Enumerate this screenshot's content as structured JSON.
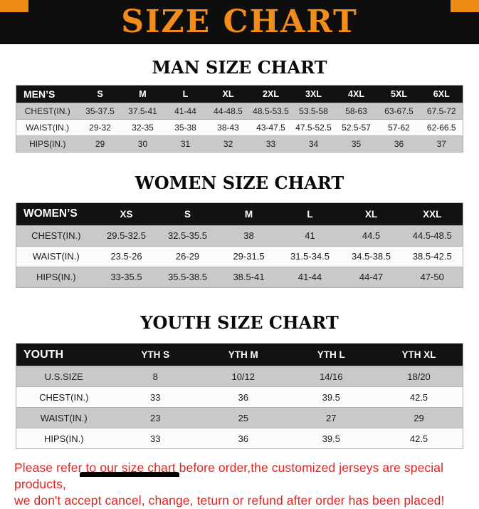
{
  "banner": {
    "title": "SIZE CHART"
  },
  "colors": {
    "banner_bg": "#0E0E0E",
    "banner_text": "#F28D1C",
    "corner_accent": "#ED8A12",
    "table_header_bg": "#121212",
    "row_gray": "#C9C9C9",
    "footer_red": "#E8201E"
  },
  "men": {
    "heading": "MAN SIZE CHART",
    "header": [
      "MEN’S",
      "S",
      "M",
      "L",
      "XL",
      "2XL",
      "3XL",
      "4XL",
      "5XL",
      "6XL"
    ],
    "rows": [
      [
        "CHEST(IN.)",
        "35-37.5",
        "37.5-41",
        "41-44",
        "44-48.5",
        "48.5-53.5",
        "53.5-58",
        "58-63",
        "63-67.5",
        "67.5-72"
      ],
      [
        "WAIST(IN.)",
        "29-32",
        "32-35",
        "35-38",
        "38-43",
        "43-47.5",
        "47.5-52.5",
        "52.5-57",
        "57-62",
        "62-66.5"
      ],
      [
        "HIPS(IN.)",
        "29",
        "30",
        "31",
        "32",
        "33",
        "34",
        "35",
        "36",
        "37"
      ]
    ]
  },
  "women": {
    "heading": "WOMEN SIZE CHART",
    "header": [
      "WOMEN’S",
      "XS",
      "S",
      "M",
      "L",
      "XL",
      "XXL"
    ],
    "rows": [
      [
        "CHEST(IN.)",
        "29.5-32.5",
        "32.5-35.5",
        "38",
        "41",
        "44.5",
        "44.5-48.5"
      ],
      [
        "WAIST(IN.)",
        "23.5-26",
        "26-29",
        "29-31.5",
        "31.5-34.5",
        "34.5-38.5",
        "38.5-42.5"
      ],
      [
        "HIPS(IN.)",
        "33-35.5",
        "35.5-38.5",
        "38.5-41",
        "41-44",
        "44-47",
        "47-50"
      ]
    ]
  },
  "youth": {
    "heading": "YOUTH SIZE CHART",
    "header": [
      "YOUTH",
      "YTH S",
      "YTH M",
      "YTH L",
      "YTH XL"
    ],
    "rows": [
      [
        "U.S.SIZE",
        "8",
        "10/12",
        "14/16",
        "18/20"
      ],
      [
        "CHEST(IN.)",
        "33",
        "36",
        "39.5",
        "42.5"
      ],
      [
        "WAIST(IN.)",
        "23",
        "25",
        "27",
        "29"
      ],
      [
        "HIPS(IN.)",
        "33",
        "36",
        "39.5",
        "42.5"
      ]
    ]
  },
  "footer": {
    "line1": "Please refer to our size chart before order,the customized jerseys are special products,",
    "line2": "we don't accept cancel, change, teturn or refund after order has been placed!"
  }
}
